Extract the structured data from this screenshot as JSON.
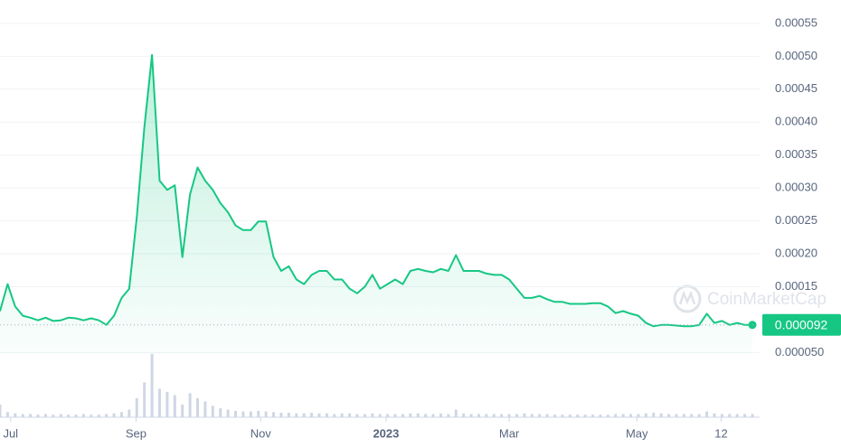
{
  "chart_data": {
    "type": "line",
    "watermark": "CoinMarketCap",
    "current_price": 9.2e-05,
    "series": [
      {
        "name": "Price",
        "color": "#16c784",
        "values": [
          0.000113,
          0.000154,
          0.00012,
          0.000106,
          0.000103,
          9.9e-05,
          0.000103,
          9.8e-05,
          9.9e-05,
          0.000103,
          0.000102,
          9.9e-05,
          0.000102,
          9.9e-05,
          9.2e-05,
          0.000106,
          0.000133,
          0.000147,
          0.000256,
          0.000393,
          0.000502,
          0.000311,
          0.000297,
          0.000304,
          0.000195,
          0.00029,
          0.000331,
          0.000311,
          0.000297,
          0.000277,
          0.000263,
          0.000243,
          0.000236,
          0.000236,
          0.000249,
          0.000249,
          0.000195,
          0.000174,
          0.000181,
          0.000161,
          0.000154,
          0.000168,
          0.000174,
          0.000174,
          0.000161,
          0.000161,
          0.000147,
          0.00014,
          0.00015,
          0.000168,
          0.000147,
          0.000154,
          0.000161,
          0.000154,
          0.000174,
          0.000177,
          0.000174,
          0.000172,
          0.000177,
          0.000174,
          0.000198,
          0.000174,
          0.000174,
          0.000174,
          0.00017,
          0.000168,
          0.000168,
          0.000161,
          0.000147,
          0.000133,
          0.000133,
          0.000136,
          0.000131,
          0.000127,
          0.000127,
          0.000124,
          0.000124,
          0.000124,
          0.000125,
          0.000125,
          0.00012,
          0.00011,
          0.000113,
          0.000109,
          0.000106,
          9.5e-05,
          9e-05,
          9.2e-05,
          9.2e-05,
          9.1e-05,
          9e-05,
          9e-05,
          9.2e-05,
          0.000109,
          9.5e-05,
          9.8e-05,
          9.2e-05,
          9.5e-05,
          9.2e-05,
          9.2e-05
        ]
      }
    ],
    "volume": {
      "color": "#cfd6e4",
      "values": [
        20,
        8,
        6,
        5,
        5,
        4,
        5,
        4,
        5,
        4,
        4,
        5,
        4,
        4,
        5,
        6,
        8,
        12,
        30,
        55,
        100,
        45,
        40,
        35,
        20,
        38,
        30,
        25,
        18,
        14,
        12,
        10,
        9,
        9,
        10,
        9,
        8,
        7,
        7,
        6,
        6,
        7,
        6,
        6,
        5,
        6,
        6,
        5,
        5,
        6,
        5,
        5,
        5,
        5,
        6,
        6,
        5,
        5,
        6,
        5,
        12,
        6,
        5,
        5,
        5,
        5,
        5,
        5,
        5,
        6,
        5,
        5,
        5,
        4,
        4,
        4,
        4,
        4,
        4,
        4,
        4,
        5,
        5,
        5,
        5,
        6,
        7,
        6,
        5,
        5,
        5,
        5,
        5,
        9,
        6,
        5,
        5,
        5,
        5,
        5
      ],
      "ylim": [
        0,
        100
      ]
    },
    "xlim": [
      0,
      99
    ],
    "xticks": [
      {
        "value": 1.4,
        "label": "Jul"
      },
      {
        "value": 17.9,
        "label": "Sep"
      },
      {
        "value": 34.3,
        "label": "Nov"
      },
      {
        "value": 50.8,
        "label": "2023"
      },
      {
        "value": 67.0,
        "label": "Mar"
      },
      {
        "value": 83.8,
        "label": "May"
      },
      {
        "value": 94.9,
        "label": "12"
      }
    ],
    "ylim": [
      3e-05,
      0.00058
    ],
    "yticks": [
      {
        "value": 5e-05,
        "label": "0.000050"
      },
      {
        "value": 0.00015,
        "label": "0.00015"
      },
      {
        "value": 0.0002,
        "label": "0.00020"
      },
      {
        "value": 0.00025,
        "label": "0.00025"
      },
      {
        "value": 0.0003,
        "label": "0.00030"
      },
      {
        "value": 0.00035,
        "label": "0.00035"
      },
      {
        "value": 0.0004,
        "label": "0.00040"
      },
      {
        "value": 0.00045,
        "label": "0.00045"
      },
      {
        "value": 0.0005,
        "label": "0.00050"
      },
      {
        "value": 0.00055,
        "label": "0.00055"
      }
    ],
    "grid": true
  }
}
